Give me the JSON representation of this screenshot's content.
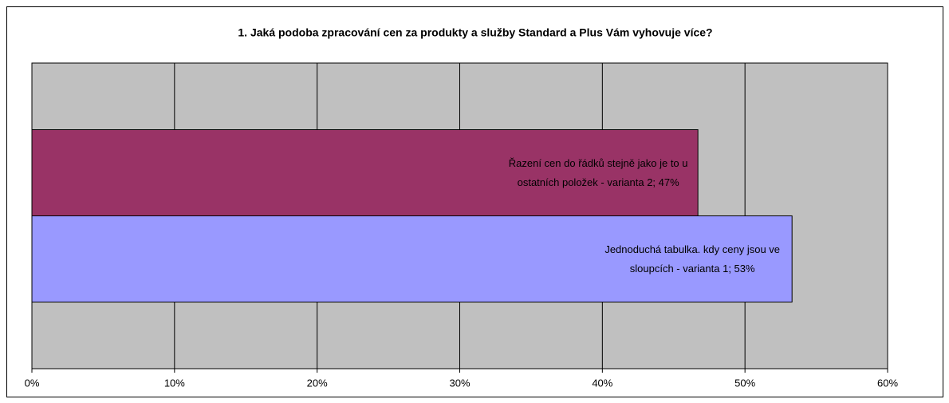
{
  "chart_data": {
    "type": "bar",
    "orientation": "horizontal",
    "title": "1. Jaká podoba zpracování cen za produkty a služby Standard a Plus Vám vyhovuje více?",
    "values": [
      46.7,
      53.3
    ],
    "value_labels": [
      "Řazení cen do řádků stejně jako je to u ostatních položek - varianta 2; 47%",
      "Jednoduchá tabulka. kdy ceny jsou ve sloupcích - varianta 1; 53%"
    ],
    "colors": [
      "#993366",
      "#9999ff"
    ],
    "xlim": [
      0,
      60
    ],
    "xticks": [
      {
        "value": 0,
        "label": "0%"
      },
      {
        "value": 10,
        "label": "10%"
      },
      {
        "value": 20,
        "label": "20%"
      },
      {
        "value": 30,
        "label": "30%"
      },
      {
        "value": 40,
        "label": "40%"
      },
      {
        "value": 50,
        "label": "50%"
      },
      {
        "value": 60,
        "label": "60%"
      }
    ],
    "grid": true,
    "plot_background": "#c0c0c0"
  }
}
